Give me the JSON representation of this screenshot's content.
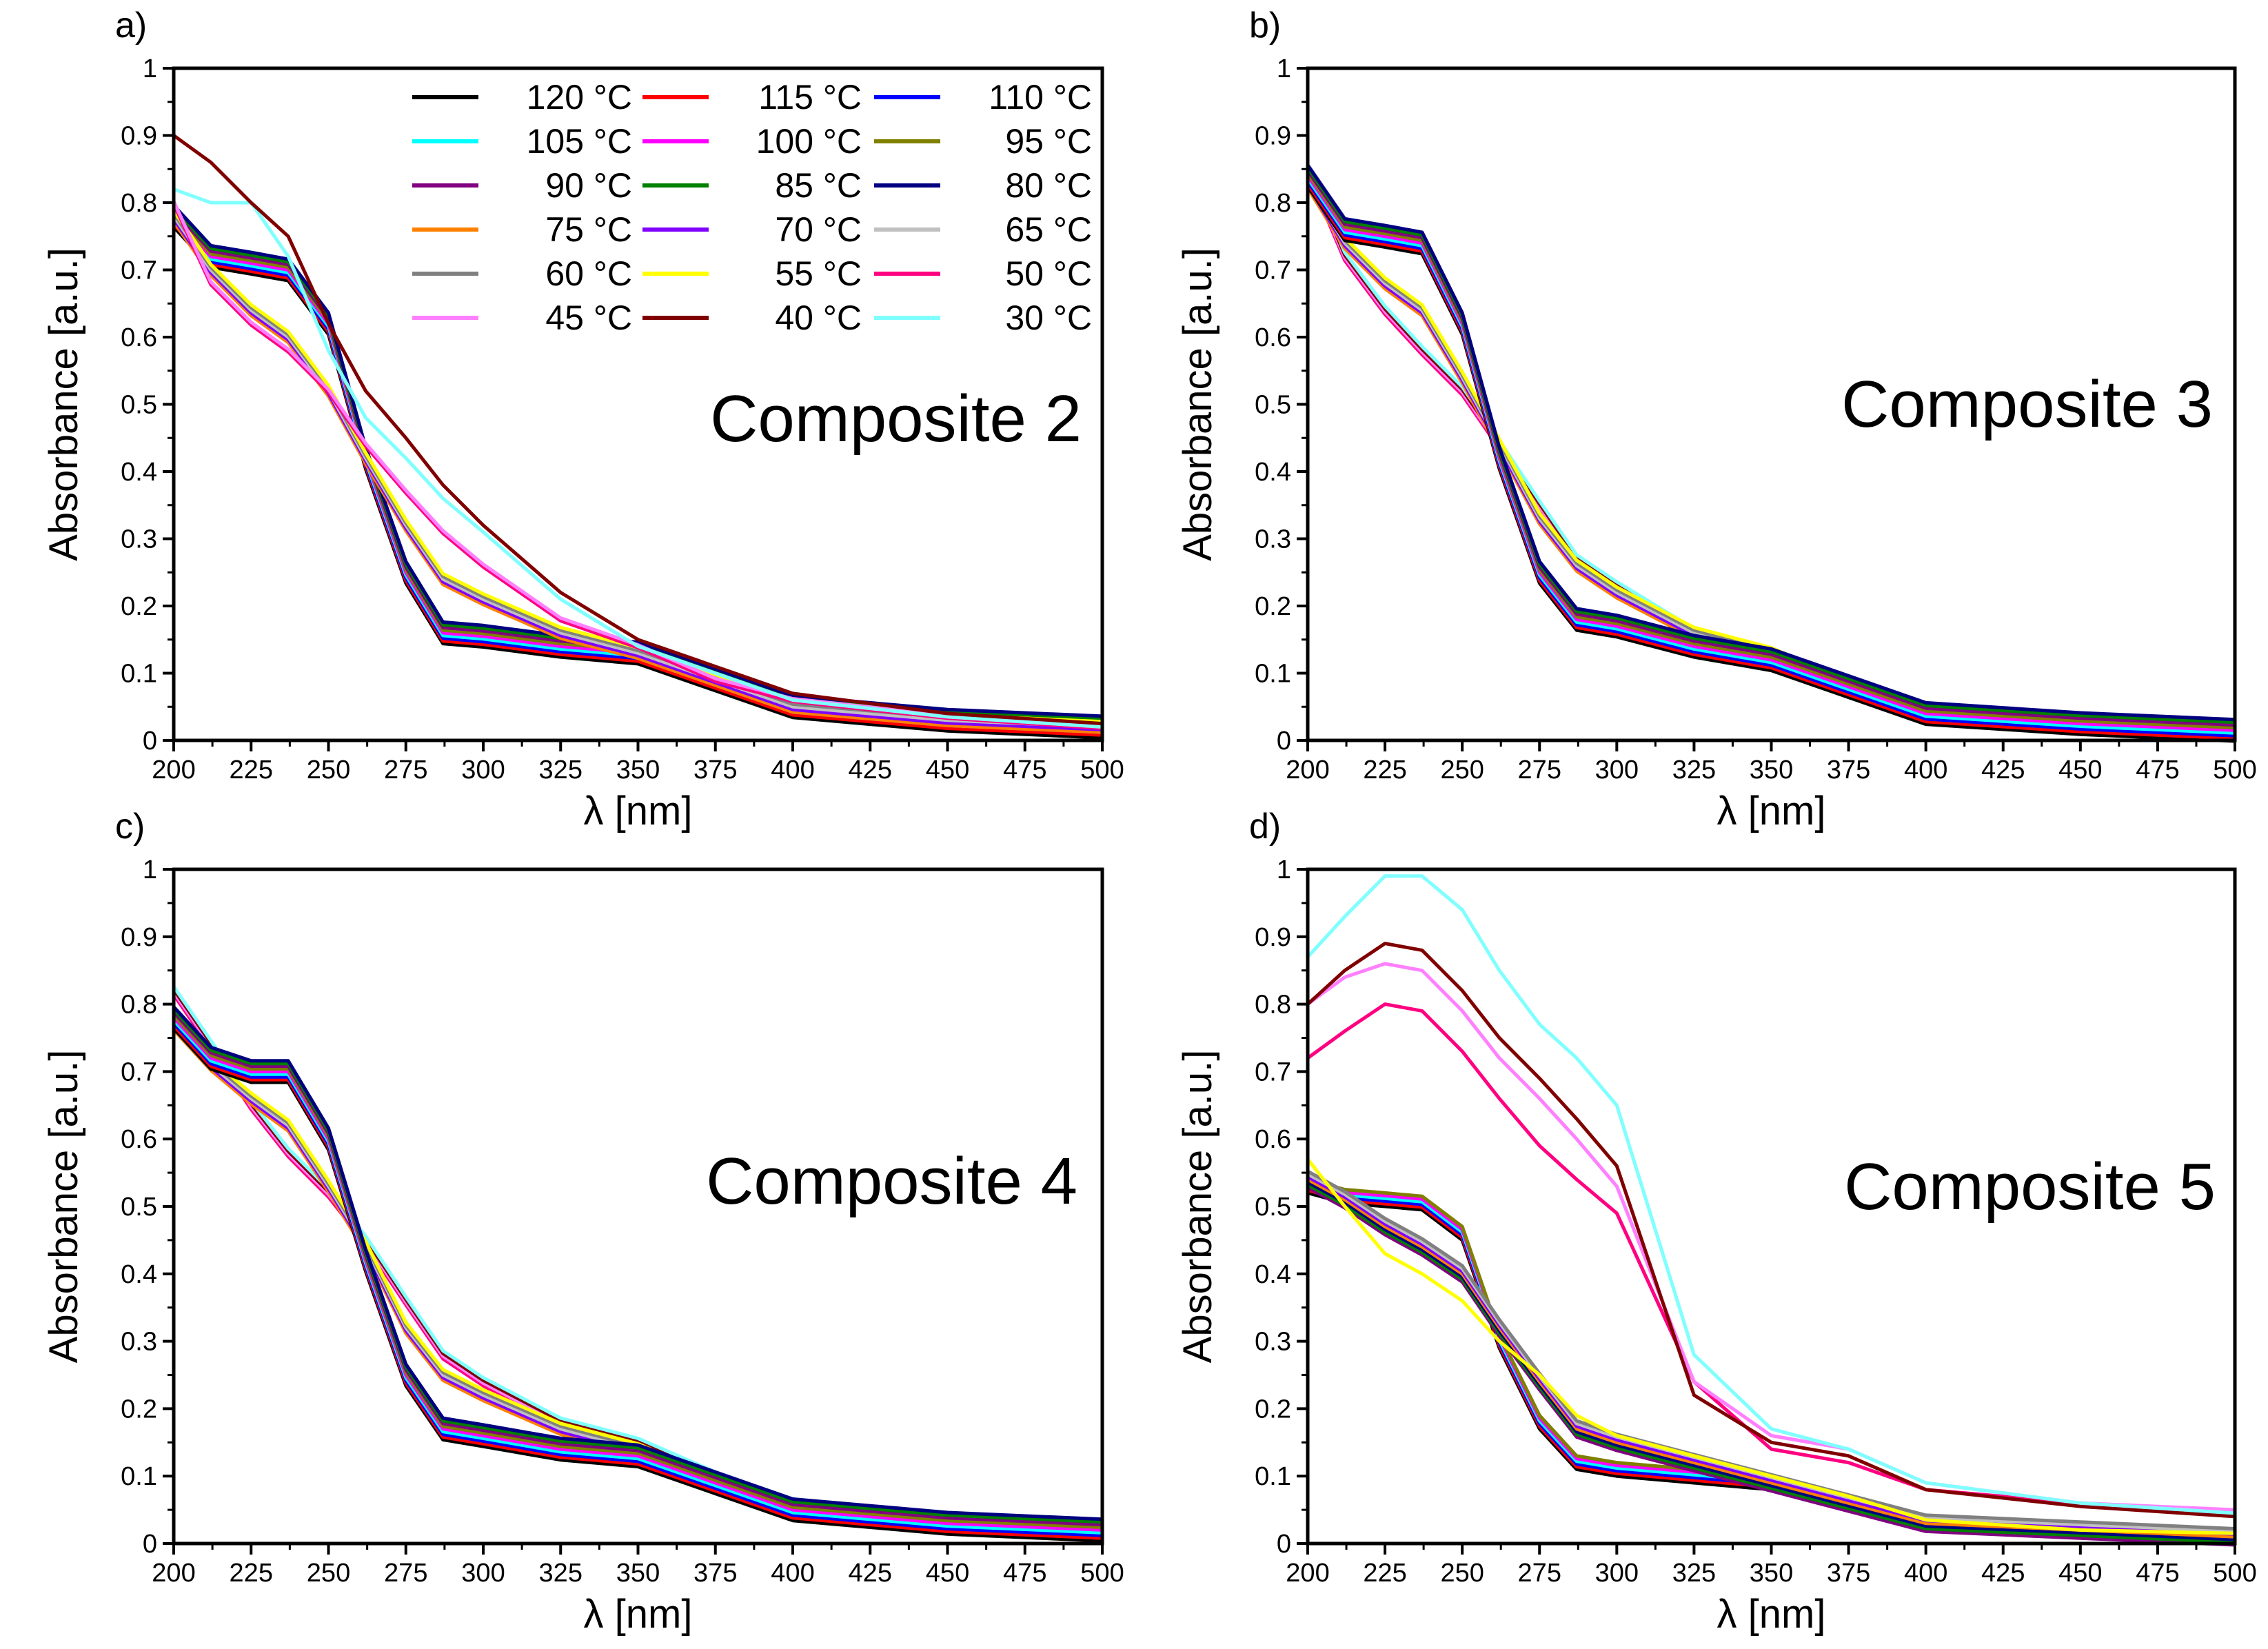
{
  "chart_data": [
    {
      "type": "line",
      "panel_label": "a)",
      "title": "Composite 2",
      "xlabel": "λ [nm]",
      "ylabel": "Absorbance [a.u.]",
      "xlim": [
        200,
        500
      ],
      "ylim": [
        0,
        1
      ],
      "xticks": [
        200,
        225,
        250,
        275,
        300,
        325,
        350,
        375,
        400,
        425,
        450,
        475,
        500
      ],
      "yticks": [
        "0",
        "0.1",
        "0.2",
        "0.3",
        "0.4",
        "0.5",
        "0.6",
        "0.7",
        "0.8",
        "0.9",
        "1"
      ],
      "x": [
        200,
        212,
        225,
        237,
        250,
        262,
        275,
        287,
        300,
        325,
        350,
        375,
        400,
        450,
        500
      ],
      "profiles": [
        {
          "members": [
            "120 °C",
            "115 °C",
            "110 °C",
            "105 °C",
            "100 °C",
            "95 °C",
            "90 °C",
            "85 °C",
            "80 °C"
          ],
          "values": [
            0.78,
            0.72,
            0.71,
            0.7,
            0.62,
            0.42,
            0.25,
            0.16,
            0.155,
            0.14,
            0.13,
            0.09,
            0.05,
            0.03,
            0.02
          ]
        },
        {
          "members": [
            "75 °C",
            "70 °C",
            "65 °C",
            "60 °C",
            "55 °C"
          ],
          "values": [
            0.78,
            0.7,
            0.64,
            0.6,
            0.52,
            0.42,
            0.32,
            0.24,
            0.21,
            0.16,
            0.13,
            0.09,
            0.05,
            0.03,
            0.02
          ]
        },
        {
          "members": [
            "50 °C",
            "45 °C"
          ],
          "values": [
            0.8,
            0.68,
            0.62,
            0.58,
            0.52,
            0.44,
            0.37,
            0.31,
            0.26,
            0.18,
            0.14,
            0.09,
            0.06,
            0.035,
            0.02
          ]
        },
        {
          "members": [
            "30 °C"
          ],
          "values": [
            0.82,
            0.8,
            0.8,
            0.72,
            0.58,
            0.48,
            0.42,
            0.36,
            0.31,
            0.21,
            0.14,
            0.1,
            0.06,
            0.035,
            0.02
          ]
        },
        {
          "members": [
            "40 °C"
          ],
          "values": [
            0.9,
            0.86,
            0.8,
            0.75,
            0.62,
            0.52,
            0.45,
            0.38,
            0.32,
            0.22,
            0.15,
            0.11,
            0.07,
            0.04,
            0.025
          ]
        }
      ]
    },
    {
      "type": "line",
      "panel_label": "b)",
      "title": "Composite 3",
      "xlabel": "λ [nm]",
      "ylabel": "Absorbance [a.u.]",
      "xlim": [
        200,
        500
      ],
      "ylim": [
        0,
        1
      ],
      "xticks": [
        200,
        225,
        250,
        275,
        300,
        325,
        350,
        375,
        400,
        425,
        450,
        475,
        500
      ],
      "yticks": [
        "0",
        "0.1",
        "0.2",
        "0.3",
        "0.4",
        "0.5",
        "0.6",
        "0.7",
        "0.8",
        "0.9",
        "1"
      ],
      "x": [
        200,
        212,
        225,
        237,
        250,
        262,
        275,
        287,
        300,
        325,
        350,
        375,
        400,
        450,
        500
      ],
      "profiles": [
        {
          "members": [
            "50 °C",
            "45 °C",
            "40 °C",
            "30 °C"
          ],
          "values": [
            0.85,
            0.72,
            0.64,
            0.58,
            0.52,
            0.44,
            0.35,
            0.27,
            0.23,
            0.16,
            0.13,
            0.08,
            0.04,
            0.025,
            0.015
          ]
        },
        {
          "members": [
            "75 °C",
            "70 °C",
            "65 °C",
            "60 °C",
            "55 °C"
          ],
          "values": [
            0.83,
            0.74,
            0.68,
            0.64,
            0.54,
            0.44,
            0.33,
            0.26,
            0.22,
            0.16,
            0.13,
            0.08,
            0.04,
            0.025,
            0.015
          ]
        },
        {
          "members": [
            "120 °C",
            "115 °C",
            "110 °C",
            "105 °C",
            "100 °C",
            "95 °C",
            "90 °C",
            "85 °C",
            "80 °C"
          ],
          "values": [
            0.84,
            0.76,
            0.75,
            0.74,
            0.62,
            0.42,
            0.25,
            0.18,
            0.17,
            0.14,
            0.12,
            0.08,
            0.04,
            0.025,
            0.015
          ]
        }
      ]
    },
    {
      "type": "line",
      "panel_label": "c)",
      "title": "Composite 4",
      "xlabel": "λ [nm]",
      "ylabel": "Absorbance [a.u.]",
      "xlim": [
        200,
        500
      ],
      "ylim": [
        0,
        1
      ],
      "xticks": [
        200,
        225,
        250,
        275,
        300,
        325,
        350,
        375,
        400,
        425,
        450,
        475,
        500
      ],
      "yticks": [
        "0",
        "0.1",
        "0.2",
        "0.3",
        "0.4",
        "0.5",
        "0.6",
        "0.7",
        "0.8",
        "0.9",
        "1"
      ],
      "x": [
        200,
        212,
        225,
        237,
        250,
        262,
        275,
        287,
        300,
        325,
        350,
        375,
        400,
        450,
        500
      ],
      "profiles": [
        {
          "members": [
            "50 °C",
            "45 °C",
            "40 °C",
            "30 °C"
          ],
          "values": [
            0.82,
            0.74,
            0.65,
            0.58,
            0.52,
            0.45,
            0.36,
            0.28,
            0.24,
            0.18,
            0.15,
            0.1,
            0.06,
            0.035,
            0.025
          ]
        },
        {
          "members": [
            "75 °C",
            "70 °C",
            "65 °C",
            "60 °C",
            "55 °C"
          ],
          "values": [
            0.77,
            0.71,
            0.66,
            0.62,
            0.53,
            0.44,
            0.32,
            0.25,
            0.22,
            0.17,
            0.14,
            0.09,
            0.05,
            0.03,
            0.02
          ]
        },
        {
          "members": [
            "120 °C",
            "115 °C",
            "110 °C",
            "105 °C",
            "100 °C",
            "95 °C",
            "90 °C",
            "85 °C",
            "80 °C"
          ],
          "values": [
            0.78,
            0.72,
            0.7,
            0.7,
            0.6,
            0.42,
            0.25,
            0.17,
            0.16,
            0.14,
            0.13,
            0.09,
            0.05,
            0.03,
            0.02
          ]
        }
      ]
    },
    {
      "type": "line",
      "panel_label": "d)",
      "title": "Composite 5",
      "xlabel": "λ [nm]",
      "ylabel": "Absorbance [a.u.]",
      "xlim": [
        200,
        500
      ],
      "ylim": [
        0,
        1
      ],
      "xticks": [
        200,
        225,
        250,
        275,
        300,
        325,
        350,
        375,
        400,
        425,
        450,
        475,
        500
      ],
      "yticks": [
        "0",
        "0.1",
        "0.2",
        "0.3",
        "0.4",
        "0.5",
        "0.6",
        "0.7",
        "0.8",
        "0.9",
        "1"
      ],
      "x": [
        200,
        212,
        225,
        237,
        250,
        262,
        275,
        287,
        300,
        325,
        350,
        375,
        400,
        450,
        500
      ],
      "profiles": [
        {
          "members": [
            "120 °C",
            "115 °C",
            "110 °C",
            "105 °C",
            "100 °C",
            "95 °C"
          ],
          "values": [
            0.53,
            0.515,
            0.51,
            0.505,
            0.46,
            0.3,
            0.18,
            0.12,
            0.11,
            0.1,
            0.09,
            0.06,
            0.03,
            0.02,
            0.01
          ]
        },
        {
          "members": [
            "90 °C",
            "85 °C",
            "80 °C",
            "75 °C",
            "70 °C",
            "65 °C",
            "60 °C"
          ],
          "values": [
            0.54,
            0.51,
            0.47,
            0.44,
            0.4,
            0.32,
            0.24,
            0.17,
            0.15,
            0.12,
            0.09,
            0.06,
            0.03,
            0.02,
            0.01
          ]
        },
        {
          "members": [
            "55 °C"
          ],
          "values": [
            0.57,
            0.5,
            0.43,
            0.4,
            0.36,
            0.3,
            0.25,
            0.19,
            0.16,
            0.13,
            0.1,
            0.07,
            0.035,
            0.02,
            0.015
          ]
        },
        {
          "members": [
            "50 °C"
          ],
          "values": [
            0.72,
            0.76,
            0.8,
            0.79,
            0.73,
            0.66,
            0.59,
            0.54,
            0.49,
            0.24,
            0.14,
            0.12,
            0.08,
            0.06,
            0.045
          ]
        },
        {
          "members": [
            "45 °C"
          ],
          "values": [
            0.8,
            0.84,
            0.86,
            0.85,
            0.79,
            0.72,
            0.66,
            0.6,
            0.53,
            0.24,
            0.16,
            0.14,
            0.09,
            0.06,
            0.05
          ]
        },
        {
          "members": [
            "40 °C"
          ],
          "values": [
            0.8,
            0.85,
            0.89,
            0.88,
            0.82,
            0.75,
            0.69,
            0.63,
            0.56,
            0.22,
            0.15,
            0.13,
            0.08,
            0.055,
            0.04
          ]
        },
        {
          "members": [
            "30 °C"
          ],
          "values": [
            0.87,
            0.93,
            0.99,
            0.99,
            0.94,
            0.85,
            0.77,
            0.72,
            0.65,
            0.28,
            0.17,
            0.14,
            0.09,
            0.06,
            0.045
          ]
        }
      ]
    }
  ],
  "legend": {
    "placement": "top-right of panel a",
    "entries": [
      {
        "name": "120 °C",
        "color": "#000000"
      },
      {
        "name": "115 °C",
        "color": "#ff0000"
      },
      {
        "name": "110 °C",
        "color": "#0000ff"
      },
      {
        "name": "105 °C",
        "color": "#00ffff"
      },
      {
        "name": "100 °C",
        "color": "#ff00ff"
      },
      {
        "name": "95 °C",
        "color": "#808000"
      },
      {
        "name": "90 °C",
        "color": "#800080"
      },
      {
        "name": "85 °C",
        "color": "#008000"
      },
      {
        "name": "80 °C",
        "color": "#000080"
      },
      {
        "name": "75 °C",
        "color": "#ff8000"
      },
      {
        "name": "70 °C",
        "color": "#8000ff"
      },
      {
        "name": "65 °C",
        "color": "#c0c0c0"
      },
      {
        "name": "60 °C",
        "color": "#808080"
      },
      {
        "name": "55 °C",
        "color": "#ffff00"
      },
      {
        "name": "50 °C",
        "color": "#ff0080"
      },
      {
        "name": "45 °C",
        "color": "#ff80ff"
      },
      {
        "name": "40 °C",
        "color": "#800000"
      },
      {
        "name": "30 °C",
        "color": "#80ffff"
      }
    ]
  }
}
